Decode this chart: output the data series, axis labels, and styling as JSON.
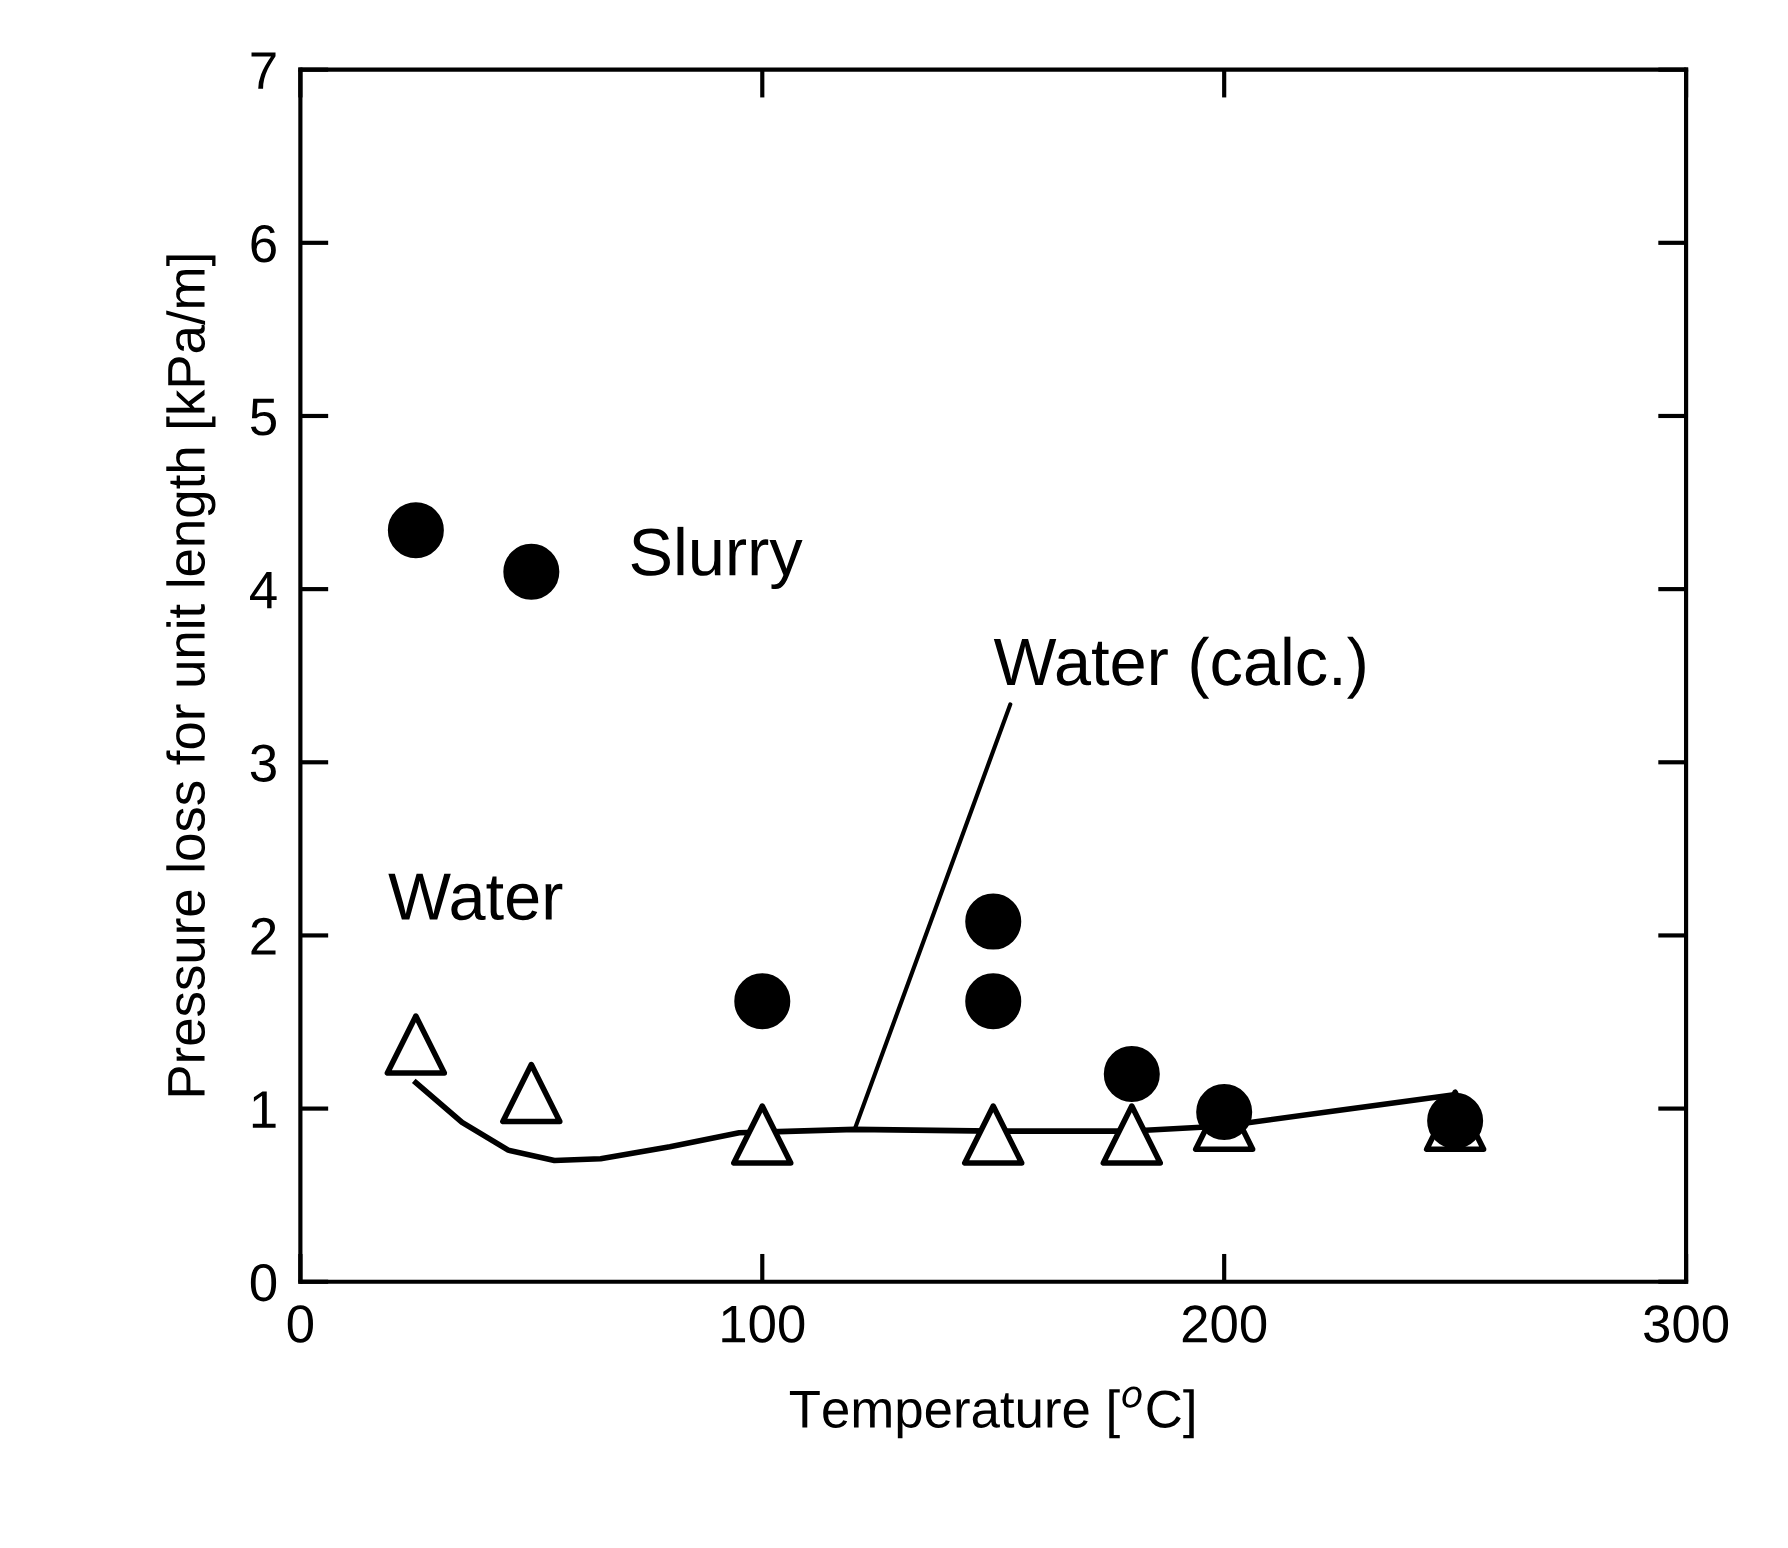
{
  "chart_data": {
    "type": "scatter",
    "xlabel": "Temperature [$^{o}$C]",
    "ylabel": "Pressure loss for unit length [kPa/m]",
    "xlim": [
      0,
      300
    ],
    "xticks": [
      0,
      100,
      200,
      300
    ],
    "ylim": [
      0,
      7
    ],
    "yticks": [
      0,
      1,
      2,
      3,
      4,
      5,
      6,
      7
    ],
    "grid": false,
    "legend": false,
    "series": [
      {
        "type": "line",
        "color": "#000000",
        "marker": "none",
        "line_style": "solid",
        "x": [
          25,
          35,
          45,
          55,
          65,
          80,
          95,
          120,
          150,
          180,
          200,
          225,
          250
        ],
        "values": [
          1.15,
          0.92,
          0.76,
          0.7,
          0.71,
          0.78,
          0.86,
          0.88,
          0.87,
          0.87,
          0.9,
          0.99,
          1.08
        ]
      },
      {
        "color": "#000000",
        "marker": "triangle",
        "x": [
          25,
          50,
          100,
          150,
          180,
          200,
          250
        ],
        "values": [
          1.37,
          1.09,
          0.85,
          0.85,
          0.85,
          0.93,
          0.93
        ]
      },
      {
        "color": "#000000",
        "marker": "circle",
        "x": [
          25,
          50,
          100,
          150,
          150,
          180,
          200,
          250
        ],
        "values": [
          4.34,
          4.1,
          1.62,
          2.08,
          1.62,
          1.2,
          0.98,
          0.93
        ]
      }
    ],
    "annotations": [
      {
        "text": "Slurry",
        "x": 50,
        "y": 4.1
      },
      {
        "text": "Water",
        "x": 25,
        "y": 1.37
      },
      {
        "text": "Water (calc.)",
        "x": 120,
        "y": 0.88
      }
    ]
  }
}
